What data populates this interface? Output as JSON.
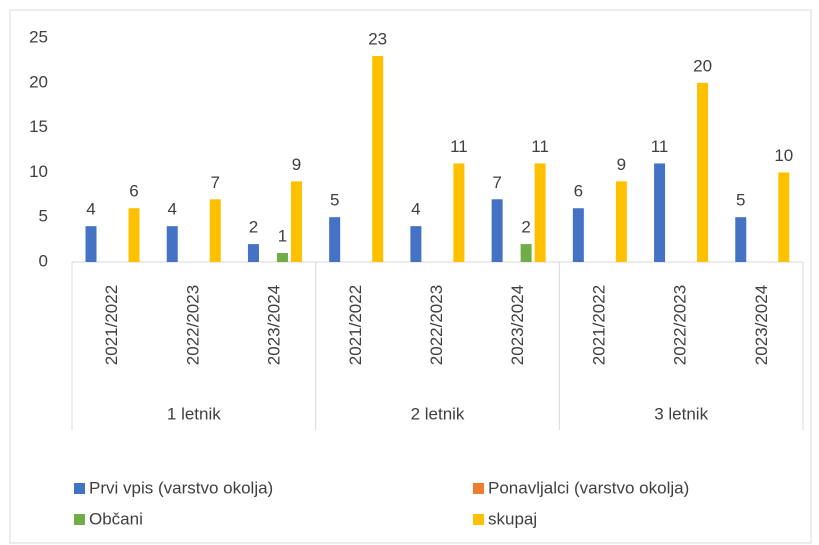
{
  "chart_data": {
    "type": "bar",
    "categories": [
      "2021/2022",
      "2022/2023",
      "2023/2024",
      "2021/2022",
      "2022/2023",
      "2023/2024",
      "2021/2022",
      "2022/2023",
      "2023/2024"
    ],
    "groups": [
      "1 letnik",
      "2 letnik",
      "3 letnik"
    ],
    "series": [
      {
        "name": "Prvi vpis (varstvo okolja)",
        "color": "#4472c4",
        "values": [
          4,
          4,
          2,
          5,
          4,
          7,
          6,
          11,
          5
        ]
      },
      {
        "name": "Ponavljalci (varstvo okolja)",
        "color": "#ed7d31",
        "values": [
          null,
          null,
          null,
          null,
          null,
          null,
          null,
          null,
          null
        ]
      },
      {
        "name": "Občani",
        "color": "#70ad47",
        "values": [
          null,
          null,
          1,
          null,
          null,
          2,
          null,
          null,
          null
        ]
      },
      {
        "name": "skupaj",
        "color": "#ffc000",
        "values": [
          6,
          7,
          9,
          23,
          11,
          11,
          9,
          20,
          10
        ]
      }
    ],
    "ylim": [
      0,
      25
    ],
    "yticks": [
      0,
      5,
      10,
      15,
      20,
      25
    ],
    "grid": false,
    "legend": "bottom"
  }
}
